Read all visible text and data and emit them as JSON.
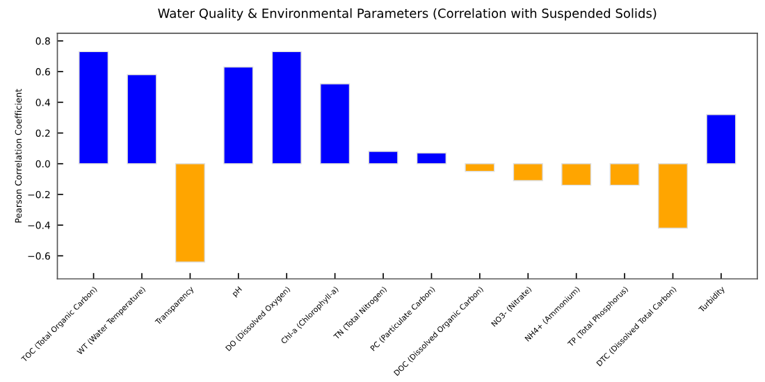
{
  "chart_data": {
    "type": "bar",
    "title": "Water Quality & Environmental Parameters (Correlation with Suspended Solids)",
    "ylabel": "Pearson Correlation Coefficient",
    "categories": [
      "TOC (Total Organic Carbon)",
      "WT (Water Temperature)",
      "Transparency",
      "pH",
      "DO (Dissolved Oxygen)",
      "Chl-a (Chlorophyll-a)",
      "TN (Total Nitrogen)",
      "PC (Particulate Carbon)",
      "DOC (Dissolved Organic Carbon)",
      "NO3- (Nitrate)",
      "NH4+ (Ammonium)",
      "TP (Total Phosphorus)",
      "DTC (Dissolved Total Carbon)",
      "Turbidity"
    ],
    "values": [
      0.73,
      0.58,
      -0.64,
      0.63,
      0.73,
      0.52,
      0.08,
      0.07,
      -0.05,
      -0.11,
      -0.14,
      -0.14,
      -0.42,
      0.32
    ],
    "colors": [
      "#0000ff",
      "#0000ff",
      "#ffa500",
      "#0000ff",
      "#0000ff",
      "#0000ff",
      "#0000ff",
      "#0000ff",
      "#ffa500",
      "#ffa500",
      "#ffa500",
      "#ffa500",
      "#ffa500",
      "#0000ff"
    ],
    "ylim": [
      -0.75,
      0.85
    ],
    "yticks": [
      {
        "value": -0.6,
        "label": "−0.6"
      },
      {
        "value": -0.4,
        "label": "−0.4"
      },
      {
        "value": -0.2,
        "label": "−0.2"
      },
      {
        "value": 0,
        "label": "0.0"
      },
      {
        "value": 0.2,
        "label": "0.2"
      },
      {
        "value": 0.4,
        "label": "0.4"
      },
      {
        "value": 0.6,
        "label": "0.6"
      },
      {
        "value": 0.8,
        "label": "0.8"
      }
    ],
    "grid": false,
    "legend": false
  }
}
